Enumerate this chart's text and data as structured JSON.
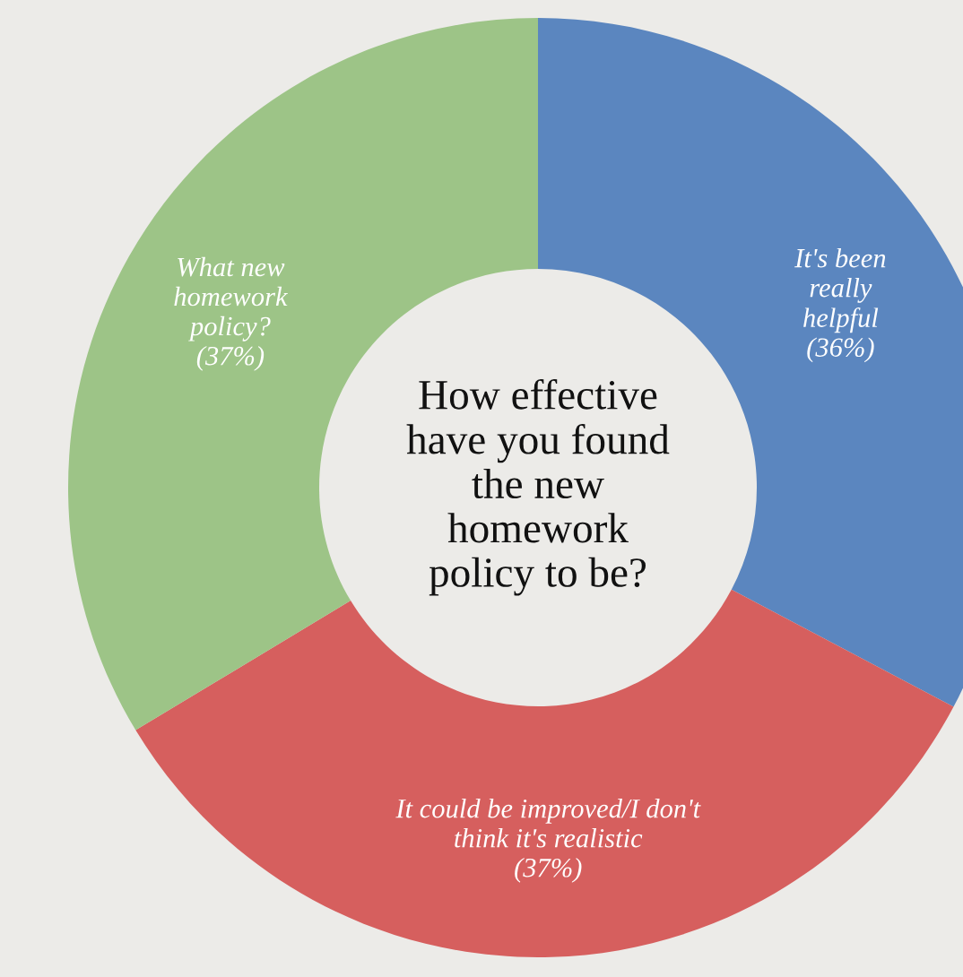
{
  "chart_data": {
    "type": "donut",
    "title": "How effective have you found the new homework policy to be?",
    "categories": [
      "It's been really helpful",
      "It could be improved/I don't think it's realistic",
      "What new homework policy?"
    ],
    "values": [
      36,
      37,
      37
    ],
    "value_labels": [
      "(36%)",
      "(37%)",
      "(37%)"
    ],
    "colors": [
      "#5b86bf",
      "#d65f5e",
      "#9dc487"
    ]
  }
}
